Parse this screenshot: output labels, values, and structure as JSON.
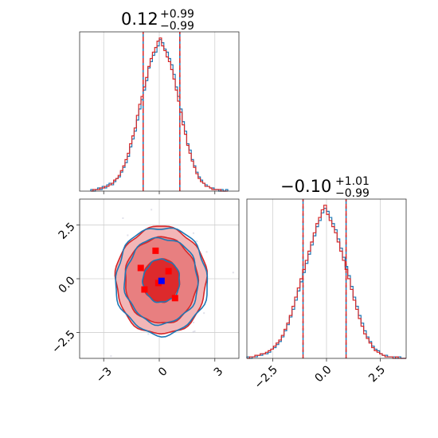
{
  "chart_data": {
    "type": "corner",
    "colors": {
      "blue": "#1f77b4",
      "red": "#d62728",
      "grid": "#d0d0d0",
      "marker_blue": "#0000ff",
      "marker_red": "#ff0000"
    },
    "grid": true,
    "panels": {
      "hist_x": {
        "type": "histogram",
        "title": {
          "value": "0.12",
          "upper": "+0.99",
          "lower": "−0.99"
        },
        "xlim": [
          -4.3,
          4.3
        ],
        "xticks": [
          -3,
          0,
          3
        ],
        "quantile_lines": [
          -0.87,
          0.12,
          1.11
        ],
        "bin_edges": [
          -3.7,
          3.7
        ],
        "series": [
          {
            "name": "",
            "color": "#1f77b4",
            "values": [
              1,
              0,
              1,
              2,
              1,
              3,
              2,
              4,
              5,
              4,
              6,
              8,
              9,
              12,
              15,
              18,
              22,
              28,
              33,
              38,
              45,
              52,
              58,
              64,
              70,
              78,
              82,
              86,
              88,
              92,
              96,
              94,
              90,
              88,
              84,
              80,
              74,
              66,
              60,
              52,
              44,
              38,
              30,
              26,
              20,
              16,
              12,
              9,
              7,
              5,
              4,
              3,
              2,
              2,
              1,
              1,
              0,
              1,
              0,
              1
            ]
          },
          {
            "name": "",
            "color": "#d62728",
            "values": [
              0,
              1,
              1,
              1,
              2,
              2,
              3,
              3,
              4,
              5,
              7,
              8,
              10,
              13,
              16,
              20,
              24,
              30,
              35,
              40,
              48,
              55,
              60,
              66,
              72,
              79,
              84,
              88,
              91,
              95,
              97,
              92,
              89,
              85,
              82,
              77,
              71,
              64,
              57,
              50,
              42,
              36,
              29,
              24,
              19,
              15,
              11,
              8,
              6,
              5,
              3,
              3,
              2,
              1,
              1,
              1,
              1,
              0,
              0,
              0
            ]
          }
        ]
      },
      "hist_y": {
        "type": "histogram",
        "title": {
          "value": "−0.10",
          "upper": "+1.01",
          "lower": "−0.99"
        },
        "xlim": [
          -3.7,
          3.7
        ],
        "xticks": [
          -2.5,
          0.0,
          2.5
        ],
        "xtick_labels": [
          "−2.5",
          "0.0",
          "2.5"
        ],
        "quantile_lines": [
          -1.09,
          -0.1,
          0.91
        ],
        "bin_edges": [
          -3.7,
          3.7
        ],
        "series": [
          {
            "name": "",
            "color": "#1f77b4",
            "values": [
              1,
              0,
              1,
              1,
              2,
              2,
              3,
              3,
              4,
              6,
              7,
              9,
              11,
              14,
              18,
              22,
              27,
              32,
              38,
              44,
              50,
              56,
              62,
              68,
              74,
              80,
              86,
              90,
              95,
              98,
              96,
              92,
              88,
              84,
              78,
              72,
              66,
              60,
              54,
              47,
              40,
              34,
              28,
              23,
              18,
              14,
              11,
              8,
              6,
              5,
              3,
              2,
              2,
              1,
              1,
              1,
              0,
              1,
              0,
              0
            ]
          },
          {
            "name": "",
            "color": "#d62728",
            "values": [
              0,
              1,
              1,
              2,
              2,
              3,
              3,
              4,
              5,
              6,
              8,
              10,
              12,
              15,
              19,
              23,
              28,
              34,
              40,
              46,
              52,
              58,
              64,
              70,
              76,
              82,
              88,
              92,
              97,
              100,
              94,
              90,
              86,
              82,
              76,
              70,
              64,
              58,
              52,
              45,
              38,
              32,
              26,
              21,
              16,
              13,
              10,
              7,
              5,
              4,
              3,
              2,
              1,
              1,
              1,
              0,
              1,
              0,
              0,
              0
            ]
          }
        ]
      },
      "joint": {
        "type": "contour",
        "xlim": [
          -4.3,
          4.3
        ],
        "ylim": [
          -3.7,
          3.7
        ],
        "xticks": [
          -3,
          0,
          3
        ],
        "yticks": [
          -2.5,
          0.0,
          2.5
        ],
        "ytick_labels": [
          "−2.5",
          "0.0",
          "2.5"
        ],
        "levels_sigma": [
          1,
          2,
          2.5
        ],
        "series": [
          {
            "name": "",
            "color": "#1f77b4",
            "center": [
              0.12,
              -0.1
            ],
            "sigma": [
              0.99,
              1.0
            ]
          },
          {
            "name": "",
            "color": "#d62728",
            "center": [
              0.1,
              -0.08
            ],
            "sigma": [
              0.98,
              1.0
            ]
          }
        ],
        "markers": [
          {
            "x": -1.0,
            "y": 0.5,
            "color": "#ff0000"
          },
          {
            "x": -0.8,
            "y": -0.5,
            "color": "#ff0000"
          },
          {
            "x": -0.2,
            "y": 1.3,
            "color": "#ff0000"
          },
          {
            "x": 0.5,
            "y": 0.35,
            "color": "#ff0000"
          },
          {
            "x": 0.85,
            "y": -0.9,
            "color": "#ff0000"
          },
          {
            "x": -0.05,
            "y": -0.2,
            "color": "#ff0000"
          },
          {
            "x": 0.12,
            "y": -0.1,
            "color": "#0000ff"
          }
        ]
      }
    }
  }
}
